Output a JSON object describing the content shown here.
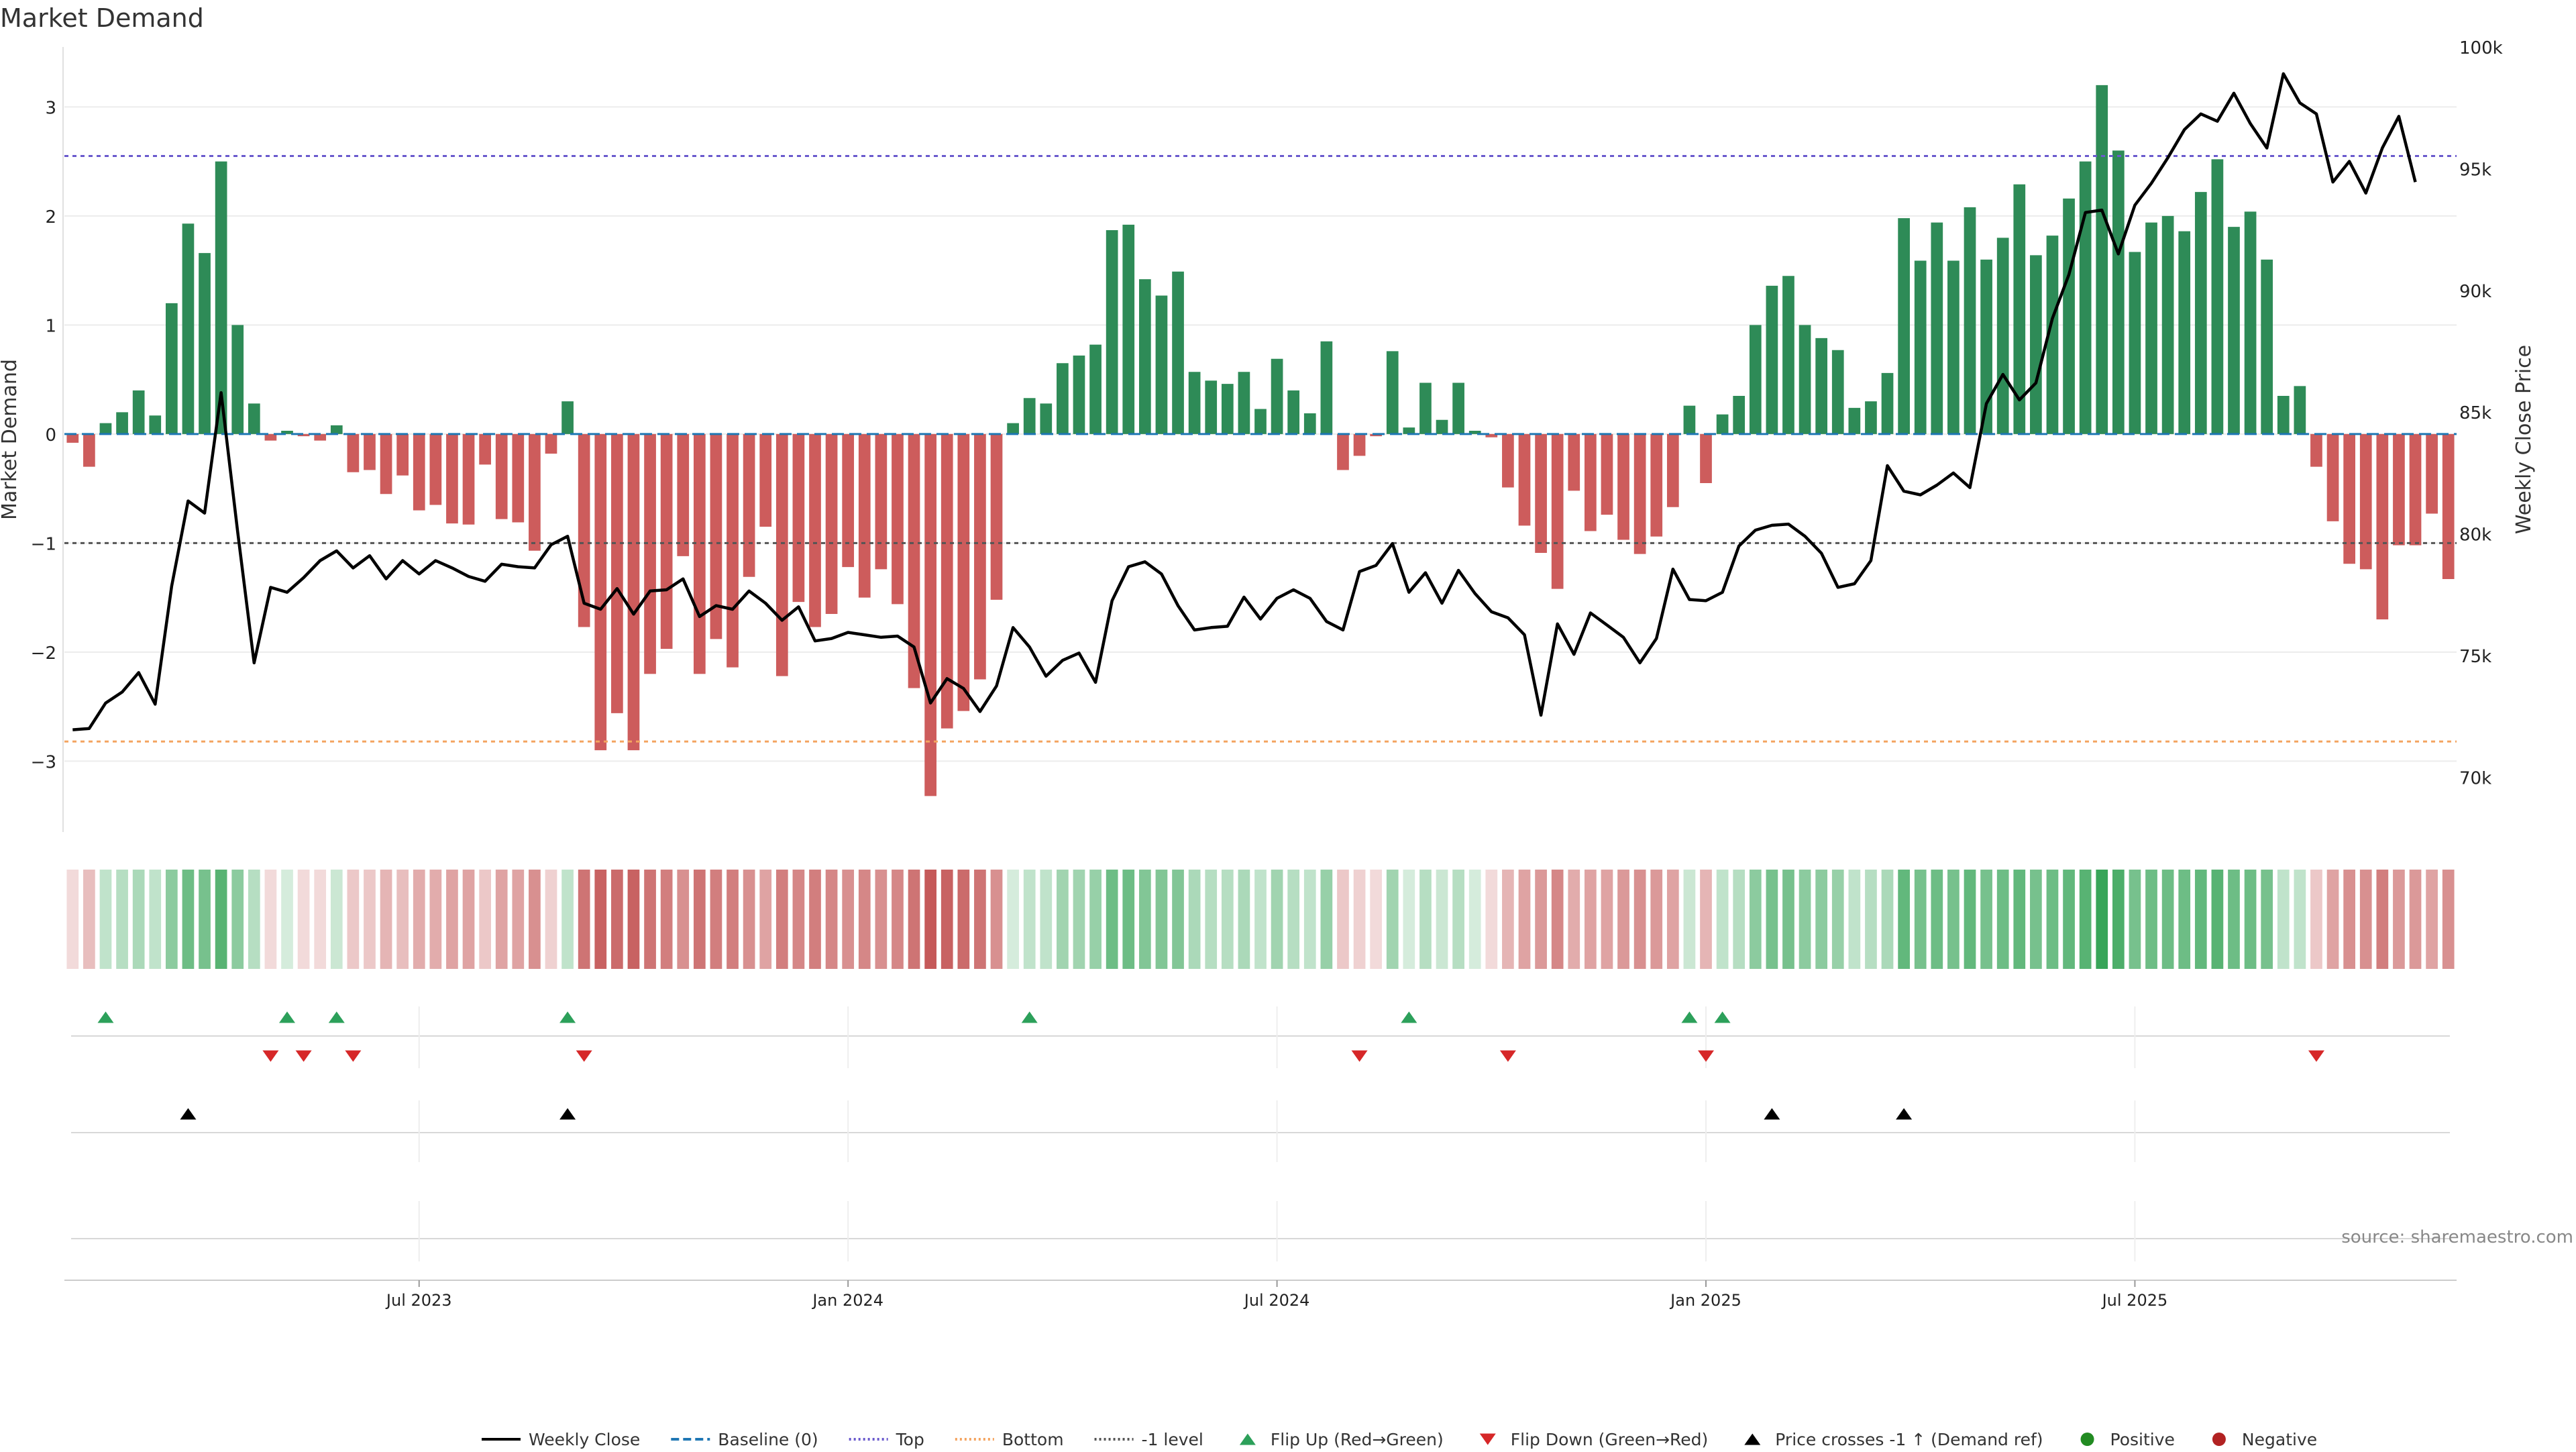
{
  "chart_data": {
    "type": "bar",
    "title": "Market Demand",
    "ylabel": "Market Demand",
    "y2label": "Weekly Close Price",
    "ylim": [
      -3.65,
      3.55
    ],
    "y2lim": [
      67750,
      100000
    ],
    "yticks": [
      -3,
      -2,
      -1,
      0,
      1,
      2,
      3
    ],
    "yticklabels": [
      "−3",
      "−2",
      "−1",
      "0",
      "1",
      "2",
      "3"
    ],
    "y2ticks": [
      70000,
      75000,
      80000,
      85000,
      90000,
      95000,
      100000
    ],
    "y2ticklabels": [
      "70k",
      "75k",
      "80k",
      "85k",
      "90k",
      "95k",
      "100k"
    ],
    "xticks": [
      21,
      47,
      73,
      99,
      125
    ],
    "xticklabels": [
      "Jul 2023",
      "Jan 2024",
      "Jul 2024",
      "Jan 2025",
      "Jul 2025"
    ],
    "reference_lines": {
      "top": 2.55,
      "bottom": -2.82,
      "minus_one": -1
    },
    "demand": [
      -0.08,
      -0.3,
      0.1,
      0.2,
      0.4,
      0.17,
      1.2,
      1.93,
      1.66,
      2.5,
      1.0,
      0.28,
      -0.06,
      0.03,
      -0.02,
      -0.06,
      0.08,
      -0.35,
      -0.33,
      -0.55,
      -0.38,
      -0.7,
      -0.65,
      -0.82,
      -0.83,
      -0.28,
      -0.78,
      -0.81,
      -1.07,
      -0.18,
      0.3,
      -1.77,
      -2.9,
      -2.56,
      -2.9,
      -2.2,
      -1.97,
      -1.12,
      -2.2,
      -1.88,
      -2.14,
      -1.31,
      -0.85,
      -2.22,
      -1.54,
      -1.77,
      -1.65,
      -1.22,
      -1.5,
      -1.24,
      -1.56,
      -2.33,
      -3.32,
      -2.7,
      -2.54,
      -2.25,
      -1.52,
      0.1,
      0.33,
      0.28,
      0.65,
      0.72,
      0.82,
      1.87,
      1.92,
      1.42,
      1.27,
      1.49,
      0.57,
      0.49,
      0.46,
      0.57,
      0.23,
      0.69,
      0.4,
      0.19,
      0.85,
      -0.33,
      -0.2,
      -0.02,
      0.76,
      0.06,
      0.47,
      0.13,
      0.47,
      0.03,
      -0.03,
      -0.49,
      -0.84,
      -1.09,
      -1.42,
      -0.52,
      -0.89,
      -0.74,
      -0.97,
      -1.1,
      -0.94,
      -0.67,
      0.26,
      -0.45,
      0.18,
      0.35,
      1.0,
      1.36,
      1.45,
      1.0,
      0.88,
      0.77,
      0.24,
      0.3,
      0.56,
      1.98,
      1.59,
      1.94,
      1.59,
      2.08,
      1.6,
      1.8,
      2.29,
      1.64,
      1.82,
      2.16,
      2.5,
      3.2,
      2.6,
      1.67,
      1.94,
      2.0,
      1.86,
      2.22,
      2.52,
      1.9,
      2.04,
      1.6,
      0.35,
      0.44,
      -0.3,
      -0.8,
      -1.19,
      -1.24,
      -1.7,
      -1.02,
      -1.02,
      -0.73,
      -1.33
    ],
    "price": [
      71950,
      72000,
      73050,
      73500,
      74300,
      73000,
      77850,
      81350,
      80850,
      85800,
      80100,
      74700,
      77800,
      77600,
      78200,
      78900,
      79300,
      78600,
      79100,
      78150,
      78900,
      78350,
      78900,
      78600,
      78250,
      78050,
      78750,
      78650,
      78600,
      79550,
      79900,
      77150,
      76900,
      77750,
      76700,
      77650,
      77700,
      78150,
      76600,
      77050,
      76900,
      77650,
      77150,
      76450,
      77000,
      75600,
      75700,
      75950,
      75850,
      75750,
      75800,
      75350,
      73050,
      74050,
      73650,
      72700,
      73750,
      76150,
      75350,
      74150,
      74800,
      75100,
      73900,
      77250,
      78650,
      78850,
      78350,
      77050,
      76050,
      76150,
      76200,
      77400,
      76500,
      77350,
      77700,
      77350,
      76400,
      76050,
      78450,
      78700,
      79600,
      77600,
      78400,
      77150,
      78500,
      77550,
      76800,
      76550,
      75850,
      72550,
      76300,
      75050,
      76750,
      76250,
      75750,
      74700,
      75700,
      78550,
      77300,
      77250,
      77600,
      79500,
      80150,
      80350,
      80400,
      79900,
      79200,
      77800,
      77950,
      78900,
      82800,
      81750,
      81600,
      82000,
      82500,
      81900,
      85350,
      86550,
      85500,
      86200,
      88850,
      90650,
      93200,
      93300,
      91500,
      93500,
      94400,
      95450,
      96600,
      97250,
      96950,
      98100,
      96850,
      95850,
      98900,
      97700,
      97250,
      94450,
      95300,
      94000,
      95850,
      97150,
      94450
    ],
    "heat_shade": [
      0.2,
      0.35,
      0.3,
      0.35,
      0.4,
      0.3,
      0.55,
      0.7,
      0.65,
      0.8,
      0.55,
      0.35,
      0.2,
      0.2,
      0.2,
      0.2,
      0.25,
      0.3,
      0.3,
      0.4,
      0.35,
      0.45,
      0.45,
      0.5,
      0.5,
      0.3,
      0.5,
      0.5,
      0.6,
      0.25,
      0.3,
      0.75,
      0.85,
      0.8,
      0.85,
      0.75,
      0.7,
      0.6,
      0.75,
      0.7,
      0.7,
      0.6,
      0.5,
      0.7,
      0.65,
      0.7,
      0.65,
      0.6,
      0.65,
      0.6,
      0.65,
      0.75,
      0.9,
      0.85,
      0.8,
      0.75,
      0.6,
      0.2,
      0.3,
      0.3,
      0.45,
      0.45,
      0.5,
      0.7,
      0.7,
      0.6,
      0.6,
      0.6,
      0.4,
      0.35,
      0.35,
      0.4,
      0.3,
      0.45,
      0.35,
      0.3,
      0.5,
      0.3,
      0.25,
      0.2,
      0.45,
      0.2,
      0.35,
      0.25,
      0.35,
      0.2,
      0.2,
      0.4,
      0.5,
      0.55,
      0.65,
      0.45,
      0.5,
      0.5,
      0.55,
      0.6,
      0.55,
      0.5,
      0.25,
      0.4,
      0.3,
      0.35,
      0.55,
      0.65,
      0.65,
      0.55,
      0.55,
      0.5,
      0.3,
      0.35,
      0.4,
      0.75,
      0.65,
      0.7,
      0.65,
      0.75,
      0.65,
      0.7,
      0.75,
      0.65,
      0.7,
      0.75,
      0.8,
      0.95,
      0.85,
      0.65,
      0.7,
      0.7,
      0.7,
      0.75,
      0.8,
      0.7,
      0.7,
      0.65,
      0.3,
      0.3,
      0.3,
      0.5,
      0.6,
      0.6,
      0.7,
      0.55,
      0.55,
      0.5,
      0.6
    ],
    "flip_up": [
      2,
      13,
      16,
      30,
      58,
      81,
      98,
      100
    ],
    "flip_down": [
      12,
      14,
      17,
      31,
      78,
      87,
      99,
      136
    ],
    "price_cross": [
      7,
      30,
      103,
      111
    ],
    "colors": {
      "positive": "#2e8b57",
      "negative": "#cd5c5c",
      "price": "#000000",
      "top": "#6a5acd",
      "bottom": "#f4a460",
      "minus_one": "#555555",
      "flip_up": "#2ca05a",
      "flip_down": "#d62728",
      "cross": "#000000"
    },
    "source": "source: sharemaestro.com",
    "legend": [
      {
        "type": "line",
        "label": "Weekly Close",
        "color": "#000000",
        "dash": ""
      },
      {
        "type": "line",
        "label": "Baseline (0)",
        "color": "#1f77b4",
        "dash": "12 6"
      },
      {
        "type": "line",
        "label": "Top",
        "color": "#6a5acd",
        "dash": "3 4"
      },
      {
        "type": "line",
        "label": "Bottom",
        "color": "#f4a460",
        "dash": "3 4"
      },
      {
        "type": "line",
        "label": "-1 level",
        "color": "#555555",
        "dash": "3 4"
      },
      {
        "type": "tri-up",
        "label": "Flip Up (Red→Green)",
        "color": "#2ca05a"
      },
      {
        "type": "tri-down",
        "label": "Flip Down (Green→Red)",
        "color": "#d62728"
      },
      {
        "type": "tri-up",
        "label": "Price crosses -1 ↑ (Demand ref)",
        "color": "#000000"
      },
      {
        "type": "dot",
        "label": "Positive",
        "color": "#228b22"
      },
      {
        "type": "dot",
        "label": "Negative",
        "color": "#b22222"
      }
    ]
  }
}
